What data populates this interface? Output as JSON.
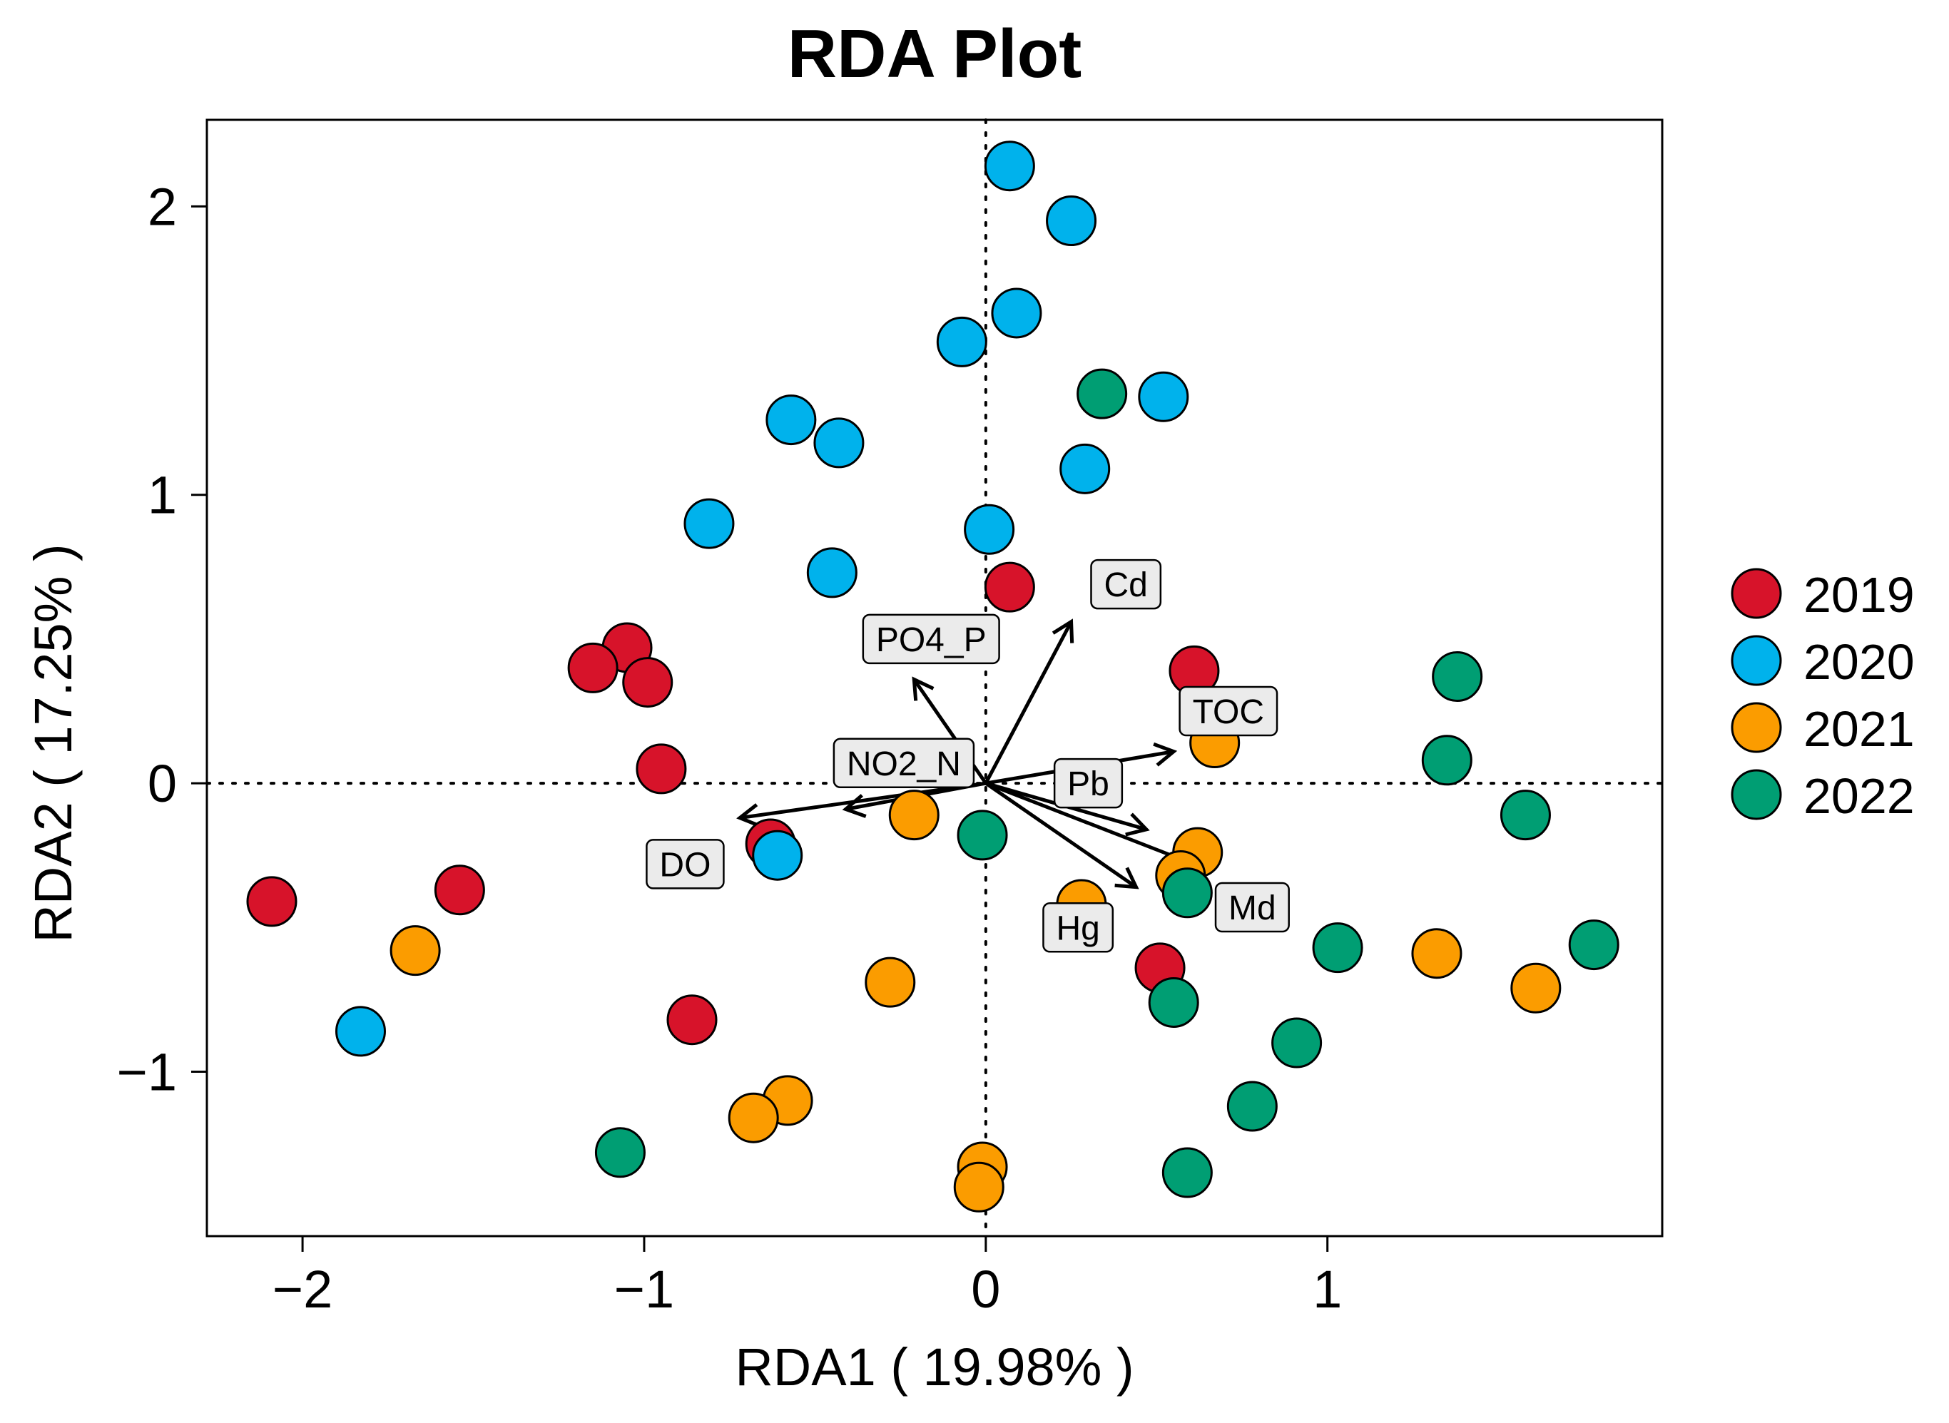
{
  "chart_data": {
    "type": "scatter",
    "title": "RDA Plot",
    "xlabel": "RDA1 ( 19.98% )",
    "ylabel": "RDA2 ( 17.25% )",
    "xlim": [
      -2.28,
      1.98
    ],
    "ylim": [
      -1.57,
      2.3
    ],
    "xticks": [
      -2,
      -1,
      0,
      1
    ],
    "yticks": [
      -1,
      0,
      1,
      2
    ],
    "xtick_labels": [
      "−2",
      "−1",
      "0",
      "1"
    ],
    "ytick_labels": [
      "−1",
      "0",
      "1",
      "2"
    ],
    "grid": false,
    "reference_lines": {
      "x": 0,
      "y": 0,
      "style": "dotted"
    },
    "legend_position": "right",
    "series": [
      {
        "name": "2019",
        "color": "#d7132a",
        "points": [
          [
            0.07,
            0.68
          ],
          [
            -1.05,
            0.47
          ],
          [
            -1.15,
            0.4
          ],
          [
            -0.99,
            0.35
          ],
          [
            0.61,
            0.39
          ],
          [
            -0.95,
            0.05
          ],
          [
            -0.63,
            -0.21
          ],
          [
            -2.09,
            -0.41
          ],
          [
            -1.54,
            -0.37
          ],
          [
            -0.86,
            -0.82
          ],
          [
            0.51,
            -0.64
          ]
        ]
      },
      {
        "name": "2020",
        "color": "#00b2ec",
        "points": [
          [
            0.07,
            2.14
          ],
          [
            0.25,
            1.95
          ],
          [
            0.09,
            1.63
          ],
          [
            -0.07,
            1.53
          ],
          [
            0.52,
            1.34
          ],
          [
            -0.57,
            1.26
          ],
          [
            -0.43,
            1.18
          ],
          [
            0.29,
            1.09
          ],
          [
            -0.81,
            0.9
          ],
          [
            0.01,
            0.88
          ],
          [
            -0.45,
            0.73
          ],
          [
            -0.61,
            -0.25
          ],
          [
            -1.83,
            -0.86
          ]
        ]
      },
      {
        "name": "2021",
        "color": "#fb9c00",
        "points": [
          [
            0.67,
            0.14
          ],
          [
            -0.21,
            -0.11
          ],
          [
            0.62,
            -0.24
          ],
          [
            0.57,
            -0.32
          ],
          [
            0.28,
            -0.42
          ],
          [
            -1.67,
            -0.58
          ],
          [
            -0.28,
            -0.69
          ],
          [
            1.32,
            -0.59
          ],
          [
            1.61,
            -0.71
          ],
          [
            -0.58,
            -1.1
          ],
          [
            -0.68,
            -1.16
          ],
          [
            -0.01,
            -1.33
          ],
          [
            -0.02,
            -1.4
          ]
        ]
      },
      {
        "name": "2022",
        "color": "#009e73",
        "points": [
          [
            0.34,
            1.35
          ],
          [
            1.38,
            0.37
          ],
          [
            1.35,
            0.08
          ],
          [
            1.58,
            -0.11
          ],
          [
            -0.01,
            -0.18
          ],
          [
            0.59,
            -0.38
          ],
          [
            1.03,
            -0.57
          ],
          [
            1.78,
            -0.56
          ],
          [
            0.55,
            -0.76
          ],
          [
            0.91,
            -0.9
          ],
          [
            0.78,
            -1.12
          ],
          [
            0.59,
            -1.35
          ],
          [
            -1.07,
            -1.28
          ]
        ]
      }
    ],
    "vectors": [
      {
        "name": "Cd",
        "end": [
          0.25,
          0.56
        ],
        "label_at": [
          0.41,
          0.69
        ]
      },
      {
        "name": "PO4_P",
        "end": [
          -0.21,
          0.36
        ],
        "label_at": [
          -0.16,
          0.5
        ]
      },
      {
        "name": "TOC",
        "end": [
          0.55,
          0.11
        ],
        "label_at": [
          0.71,
          0.25
        ]
      },
      {
        "name": "NO2_N",
        "end": [
          -0.41,
          -0.09
        ],
        "label_at": [
          -0.24,
          0.07
        ]
      },
      {
        "name": "DO",
        "end": [
          -0.72,
          -0.12
        ],
        "label_at": [
          -0.88,
          -0.28
        ]
      },
      {
        "name": "Pb",
        "end": [
          0.47,
          -0.16
        ],
        "label_at": [
          0.3,
          0.0
        ]
      },
      {
        "name": "Md",
        "end": [
          0.63,
          -0.29
        ],
        "label_at": [
          0.78,
          -0.43
        ]
      },
      {
        "name": "Hg",
        "end": [
          0.44,
          -0.36
        ],
        "label_at": [
          0.27,
          -0.5
        ]
      }
    ]
  }
}
